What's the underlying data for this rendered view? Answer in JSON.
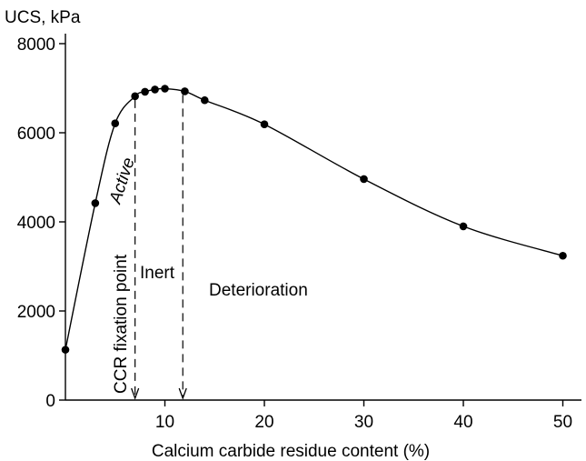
{
  "chart_data": {
    "type": "line",
    "title": "",
    "ylabel": "UCS, kPa",
    "xlabel": "Calcium carbide residue content (%)",
    "xlim": [
      0,
      52
    ],
    "ylim": [
      0,
      8000
    ],
    "x_ticks": [
      10,
      20,
      30,
      40,
      50
    ],
    "x_tick_labels": [
      "10",
      "20",
      "30",
      "40",
      "50"
    ],
    "y_ticks": [
      0,
      2000,
      4000,
      6000,
      8000
    ],
    "y_tick_labels": [
      "0",
      "2000",
      "4000",
      "6000",
      "8000"
    ],
    "grid": false,
    "series": [
      {
        "points": [
          {
            "x": 0,
            "y": 1130
          },
          {
            "x": 3,
            "y": 4420
          },
          {
            "x": 5,
            "y": 6210
          },
          {
            "x": 7,
            "y": 6820
          },
          {
            "x": 8,
            "y": 6920
          },
          {
            "x": 9,
            "y": 6970
          },
          {
            "x": 10,
            "y": 6990
          },
          {
            "x": 12,
            "y": 6930
          },
          {
            "x": 14,
            "y": 6730
          },
          {
            "x": 20,
            "y": 6190
          },
          {
            "x": 30,
            "y": 4960
          },
          {
            "x": 40,
            "y": 3900
          },
          {
            "x": 50,
            "y": 3240
          }
        ]
      }
    ],
    "markers": [
      {
        "x": 7,
        "y": 6820
      },
      {
        "x": 11.8,
        "y": 6930
      }
    ],
    "annotations": {
      "active": "Active",
      "fixation": "CCR fixation point",
      "inert": "Inert",
      "deterioration": "Deterioration"
    }
  }
}
